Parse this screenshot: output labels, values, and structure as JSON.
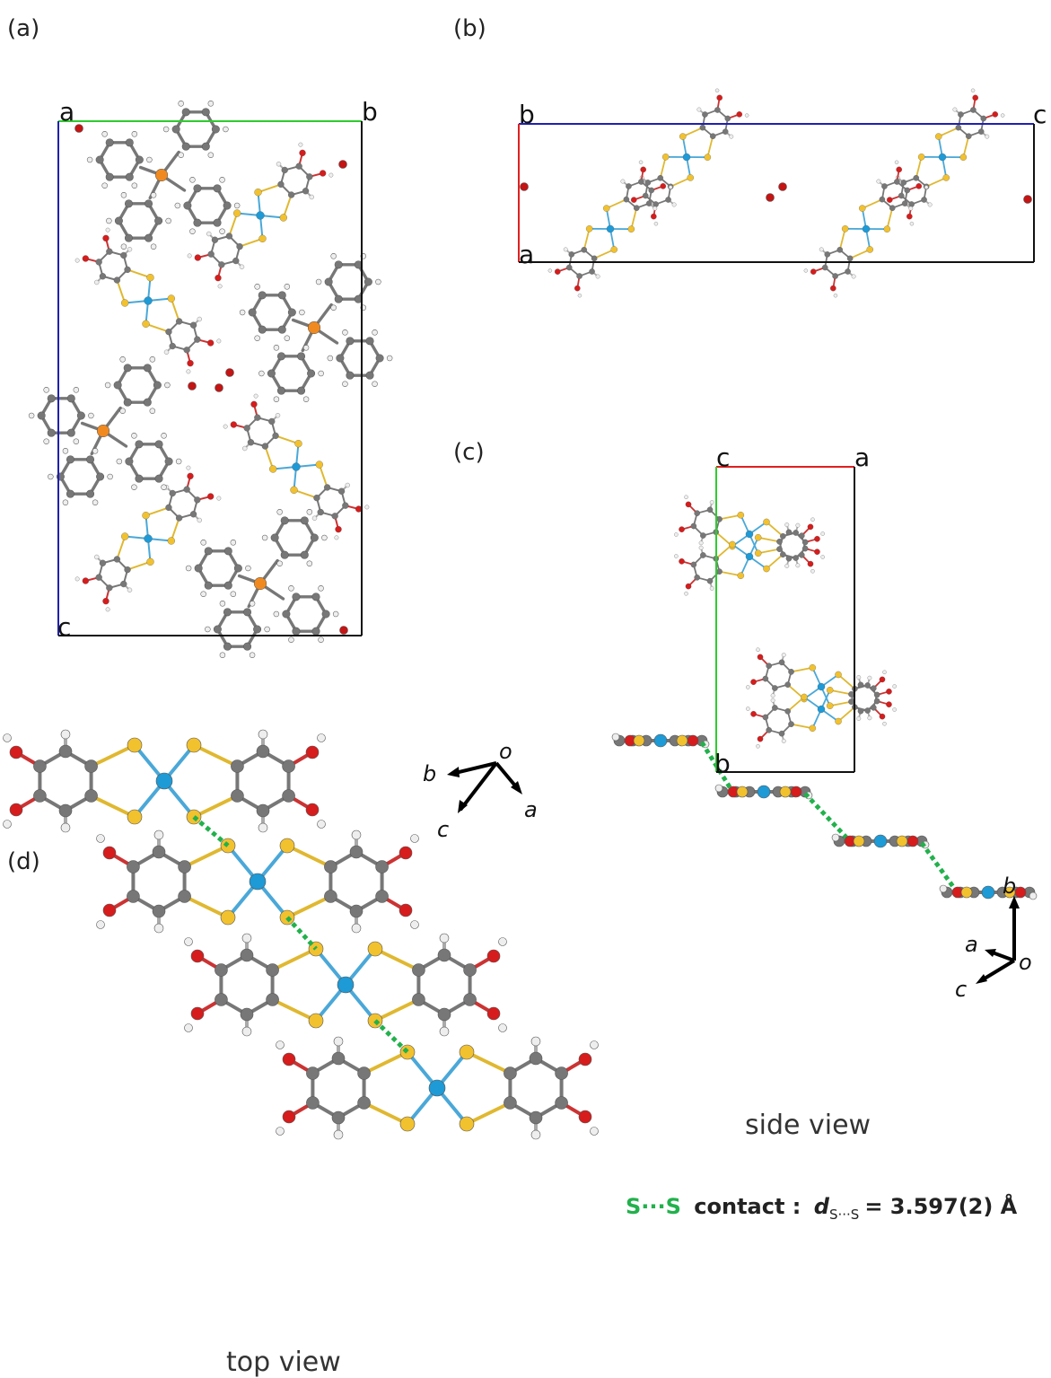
{
  "panel_a": {
    "label": "(a)",
    "cell_corners": [
      "a",
      "b",
      "c"
    ]
  },
  "panel_b": {
    "label": "(b)",
    "cell_corners": [
      "b",
      "c",
      "a"
    ]
  },
  "panel_c": {
    "label": "(c)",
    "cell_corners": [
      "c",
      "a",
      "b"
    ]
  },
  "panel_d": {
    "label": "(d)",
    "top_view": {
      "caption": "top view",
      "axes": [
        "o",
        "b",
        "c",
        "a"
      ]
    },
    "side_view": {
      "caption": "side view",
      "axes": [
        "b",
        "a",
        "o",
        "c"
      ]
    },
    "contact": {
      "atoms": "S···S",
      "text": "contact :",
      "symbol": "d",
      "subscript": "S···S",
      "value": "= 3.597(2) Å"
    }
  }
}
